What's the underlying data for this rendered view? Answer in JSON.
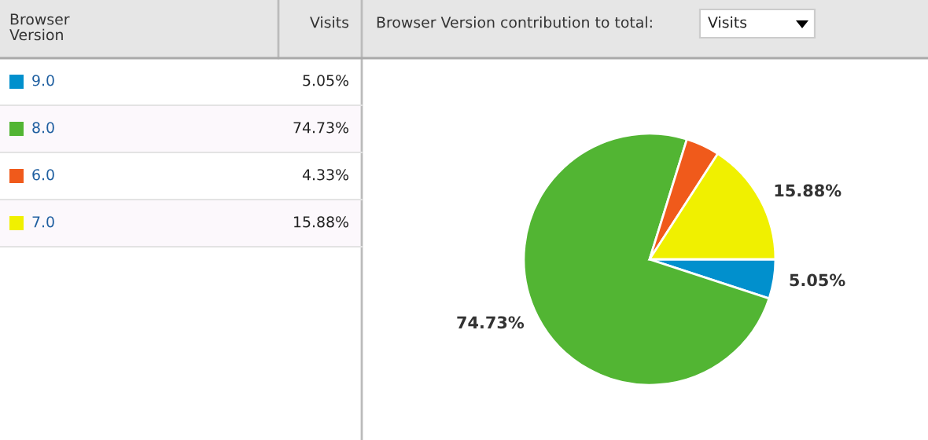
{
  "chart_data": {
    "type": "pie",
    "title": "Browser Version contribution to total:",
    "categories": [
      "9.0",
      "8.0",
      "6.0",
      "7.0"
    ],
    "values": [
      5.05,
      74.73,
      4.33,
      15.88
    ],
    "colors": [
      "#0190cd",
      "#52b533",
      "#f05a1b",
      "#f0f000"
    ],
    "value_labels": [
      "5.05%",
      "74.73%",
      "4.33%",
      "15.88%"
    ],
    "legend": "left",
    "annotations": [
      "Browser Version",
      "Visits",
      "Visits",
      {
        "text": "5.05%",
        "x": "9.0"
      },
      {
        "text": "74.73%",
        "x": "8.0"
      },
      {
        "text": "15.88%",
        "x": "7.0"
      }
    ]
  }
}
